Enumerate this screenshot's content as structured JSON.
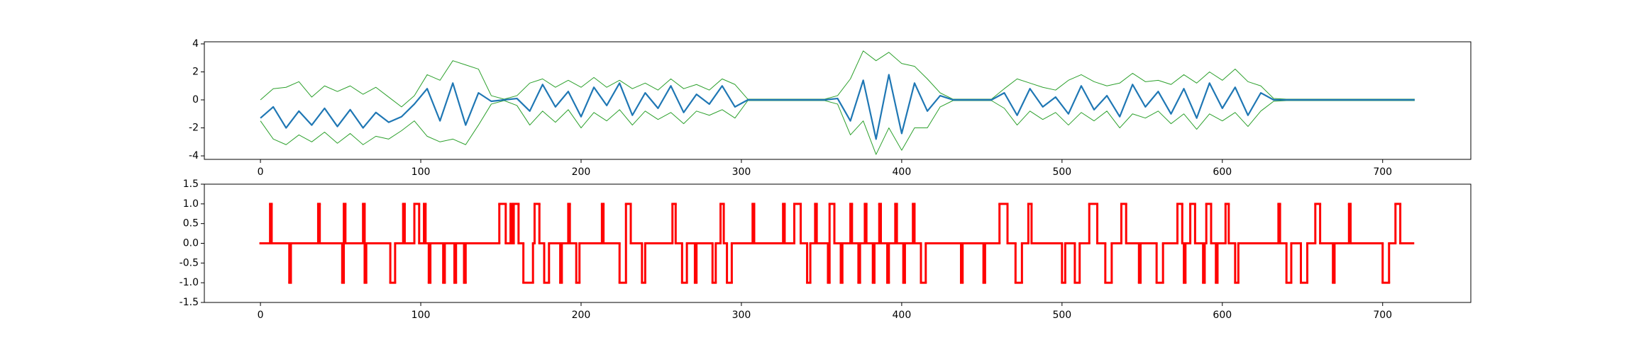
{
  "chart_data": [
    {
      "type": "line",
      "x": [
        0,
        8,
        16,
        24,
        32,
        40,
        48,
        56,
        64,
        72,
        80,
        88,
        96,
        104,
        112,
        120,
        128,
        136,
        144,
        152,
        160,
        168,
        176,
        184,
        192,
        200,
        208,
        216,
        224,
        232,
        240,
        248,
        256,
        264,
        272,
        280,
        288,
        296,
        304,
        312,
        320,
        328,
        336,
        344,
        352,
        360,
        368,
        376,
        384,
        392,
        400,
        408,
        416,
        424,
        432,
        440,
        448,
        456,
        464,
        472,
        480,
        488,
        496,
        504,
        512,
        520,
        528,
        536,
        544,
        552,
        560,
        568,
        576,
        584,
        592,
        600,
        608,
        616,
        624,
        632,
        640,
        648,
        656,
        664,
        672,
        680,
        688,
        696,
        704,
        712,
        720
      ],
      "series": [
        {
          "color": "#2ca02c",
          "linewidth": 1,
          "values": [
            0.0,
            0.8,
            0.9,
            1.3,
            0.2,
            1.0,
            0.6,
            1.0,
            0.4,
            0.9,
            0.2,
            -0.5,
            0.3,
            1.8,
            1.4,
            2.8,
            2.5,
            2.2,
            0.3,
            0.05,
            0.3,
            1.2,
            1.5,
            0.9,
            1.4,
            0.9,
            1.6,
            0.9,
            1.4,
            0.8,
            1.2,
            0.7,
            1.5,
            0.8,
            1.1,
            0.7,
            1.5,
            1.1,
            0.05,
            0.05,
            0.05,
            0.05,
            0.05,
            0.05,
            0.05,
            0.3,
            1.5,
            3.5,
            2.8,
            3.4,
            2.6,
            2.4,
            1.5,
            0.5,
            0.05,
            0.05,
            0.05,
            0.05,
            0.8,
            1.5,
            1.2,
            0.9,
            0.7,
            1.4,
            1.8,
            1.3,
            1.0,
            1.2,
            1.9,
            1.3,
            1.4,
            1.1,
            1.8,
            1.2,
            2.0,
            1.4,
            2.2,
            1.3,
            1.0,
            0.1,
            0.05,
            0.05,
            0.05,
            0.05,
            0.05,
            0.05,
            0.05,
            0.05,
            0.05,
            0.05,
            0.05
          ]
        },
        {
          "color": "#2ca02c",
          "linewidth": 1,
          "values": [
            -1.5,
            -2.8,
            -3.2,
            -2.5,
            -3.0,
            -2.3,
            -3.1,
            -2.4,
            -3.2,
            -2.6,
            -2.8,
            -2.2,
            -1.5,
            -2.6,
            -3.0,
            -2.8,
            -3.2,
            -1.8,
            -0.3,
            -0.05,
            -0.4,
            -1.8,
            -0.8,
            -1.6,
            -0.7,
            -2.0,
            -0.9,
            -1.5,
            -0.7,
            -1.8,
            -0.8,
            -1.4,
            -0.9,
            -1.7,
            -0.8,
            -1.1,
            -0.7,
            -1.3,
            -0.05,
            -0.05,
            -0.05,
            -0.05,
            -0.05,
            -0.05,
            -0.05,
            -0.3,
            -2.5,
            -1.5,
            -3.9,
            -2.0,
            -3.6,
            -2.0,
            -2.0,
            -0.5,
            -0.05,
            -0.05,
            -0.05,
            -0.05,
            -0.6,
            -1.8,
            -0.8,
            -1.4,
            -0.9,
            -1.8,
            -0.9,
            -1.5,
            -0.8,
            -2.0,
            -1.0,
            -1.3,
            -0.8,
            -1.7,
            -1.0,
            -2.1,
            -1.0,
            -1.5,
            -0.9,
            -1.9,
            -0.8,
            -0.1,
            -0.05,
            -0.05,
            -0.05,
            -0.05,
            -0.05,
            -0.05,
            -0.05,
            -0.05,
            -0.05,
            -0.05,
            -0.05
          ]
        },
        {
          "color": "#1f77b4",
          "linewidth": 2.2,
          "values": [
            -1.3,
            -0.5,
            -2.0,
            -0.8,
            -1.8,
            -0.6,
            -1.9,
            -0.7,
            -2.0,
            -0.9,
            -1.6,
            -1.2,
            -0.3,
            0.8,
            -1.5,
            1.2,
            -1.8,
            0.5,
            -0.1,
            0.0,
            0.1,
            -0.8,
            1.1,
            -0.5,
            0.6,
            -1.2,
            0.9,
            -0.4,
            1.2,
            -1.1,
            0.5,
            -0.6,
            1.0,
            -0.9,
            0.4,
            -0.3,
            1.0,
            -0.5,
            0.0,
            0.0,
            0.0,
            0.0,
            0.0,
            0.0,
            0.0,
            0.1,
            -1.5,
            1.4,
            -2.8,
            1.8,
            -2.4,
            1.2,
            -0.8,
            0.3,
            0.0,
            0.0,
            0.0,
            0.0,
            0.5,
            -1.1,
            0.8,
            -0.5,
            0.2,
            -1.0,
            1.0,
            -0.7,
            0.3,
            -1.2,
            1.1,
            -0.5,
            0.6,
            -1.0,
            0.8,
            -1.3,
            1.2,
            -0.6,
            0.9,
            -1.1,
            0.5,
            0.0,
            0.0,
            0.0,
            0.0,
            0.0,
            0.0,
            0.0,
            0.0,
            0.0,
            0.0,
            0.0,
            0.0
          ]
        }
      ],
      "xlim": [
        -35,
        755
      ],
      "xticks": [
        0,
        100,
        200,
        300,
        400,
        500,
        600,
        700
      ],
      "ylim": [
        -4.25,
        4.15
      ],
      "yticks": [
        -4,
        -2,
        0,
        2,
        4
      ]
    },
    {
      "type": "step",
      "color": "#ff0000",
      "linewidth": 3,
      "x": [
        0,
        6,
        7,
        18,
        19,
        36,
        37,
        51,
        52,
        53,
        64,
        65,
        66,
        81,
        84,
        89,
        90,
        96,
        99,
        102,
        103,
        105,
        106,
        114,
        115,
        121,
        122,
        127,
        128,
        149,
        153,
        156,
        157,
        158,
        161,
        164,
        170,
        171,
        174,
        177,
        180,
        187,
        188,
        192,
        193,
        197,
        199,
        213,
        214,
        224,
        228,
        231,
        238,
        240,
        257,
        259,
        263,
        266,
        271,
        272,
        282,
        284,
        287,
        289,
        291,
        294,
        307,
        308,
        326,
        327,
        333,
        337,
        341,
        343,
        346,
        347,
        354,
        355,
        358,
        362,
        363,
        368,
        369,
        373,
        374,
        377,
        378,
        382,
        383,
        386,
        387,
        391,
        392,
        396,
        397,
        401,
        402,
        407,
        408,
        412,
        415,
        437,
        438,
        451,
        452,
        461,
        466,
        471,
        475,
        479,
        481,
        500,
        502,
        508,
        511,
        517,
        522,
        527,
        531,
        537,
        540,
        548,
        549,
        559,
        563,
        572,
        575,
        576,
        577,
        580,
        583,
        588,
        589,
        590,
        593,
        596,
        597,
        602,
        604,
        608,
        610,
        635,
        636,
        640,
        643,
        649,
        653,
        658,
        661,
        669,
        670,
        679,
        680,
        700,
        704,
        708,
        711,
        719
      ],
      "values": [
        0,
        1,
        0,
        -1,
        0,
        1,
        0,
        -1,
        1,
        0,
        1,
        -1,
        0,
        -1,
        0,
        1,
        0,
        1,
        0,
        1,
        0,
        -1,
        0,
        -1,
        0,
        -1,
        0,
        -1,
        0,
        1,
        0,
        1,
        0,
        1,
        0,
        -1,
        0,
        1,
        0,
        -1,
        0,
        -1,
        0,
        1,
        0,
        -1,
        0,
        1,
        0,
        -1,
        1,
        0,
        -1,
        0,
        1,
        0,
        -1,
        0,
        -1,
        0,
        -1,
        0,
        1,
        0,
        -1,
        0,
        1,
        0,
        1,
        0,
        1,
        0,
        -1,
        0,
        1,
        0,
        -1,
        1,
        0,
        -1,
        0,
        1,
        0,
        -1,
        0,
        1,
        0,
        -1,
        0,
        1,
        0,
        -1,
        0,
        1,
        0,
        -1,
        0,
        1,
        0,
        -1,
        0,
        -1,
        0,
        -1,
        0,
        1,
        0,
        -1,
        0,
        1,
        0,
        -1,
        0,
        -1,
        0,
        1,
        0,
        -1,
        0,
        1,
        0,
        -1,
        0,
        -1,
        0,
        1,
        0,
        -1,
        0,
        1,
        0,
        -1,
        0,
        1,
        0,
        -1,
        0,
        1,
        0,
        -1,
        0,
        1,
        0,
        -1,
        0,
        -1,
        0,
        1,
        0,
        -1,
        0,
        1,
        0,
        -1,
        0,
        1,
        0,
        0
      ],
      "xlim": [
        -35,
        755
      ],
      "xticks": [
        0,
        100,
        200,
        300,
        400,
        500,
        600,
        700
      ],
      "ylim": [
        -1.5,
        1.5
      ],
      "yticks": [
        -1.5,
        {
          "value": -1.0,
          "label": "-1.0"
        },
        -0.5,
        {
          "value": 0.0,
          "label": "0.0"
        },
        0.5,
        {
          "value": 1.0,
          "label": "1.0"
        },
        1.5
      ]
    }
  ]
}
